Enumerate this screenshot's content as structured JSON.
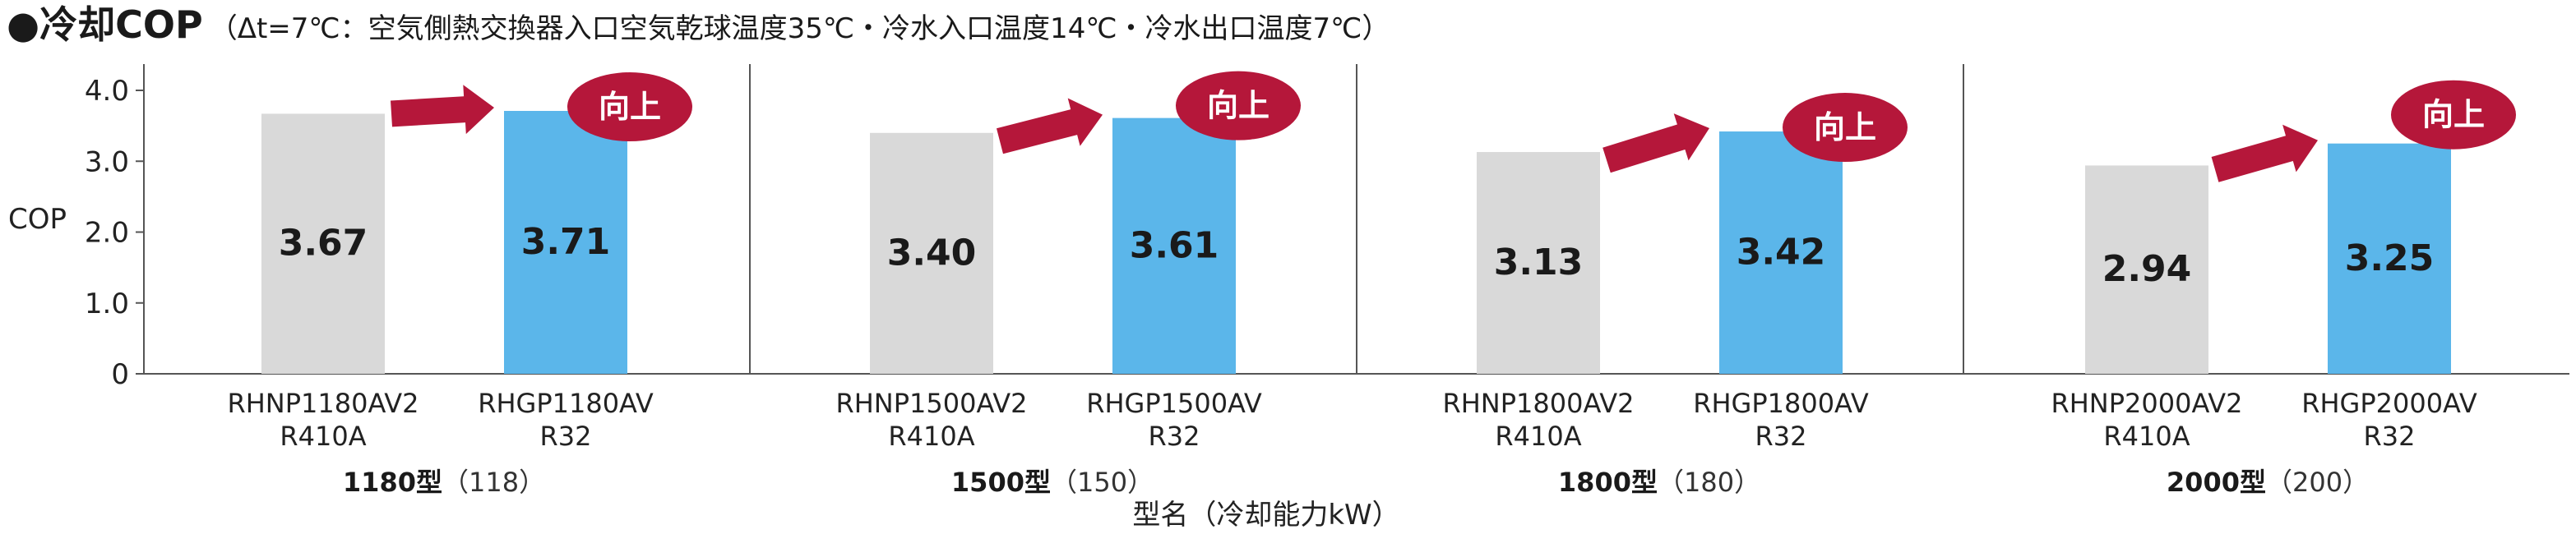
{
  "chart_data": {
    "type": "bar",
    "title": "●冷却COP",
    "subtitle": "（Δt=7℃：空気側熱交換器入口空気乾球温度35℃・冷水入口温度14℃・冷水出口温度7℃）",
    "ylabel": "COP",
    "xlabel": "型名（冷却能力kW）",
    "ylim": [
      0,
      4.0
    ],
    "yticks": [
      "0",
      "1.0",
      "2.0",
      "3.0",
      "4.0"
    ],
    "ytick_values": [
      0,
      1,
      2,
      3,
      4
    ],
    "badge_text": "向上",
    "colors": {
      "old": "#d9d9d9",
      "new": "#5bb6ea",
      "accent": "#b5173a",
      "axis": "#555555"
    },
    "groups": [
      {
        "name": "1180型",
        "capacity": "（118）",
        "bars": [
          {
            "model": "RHNP1180AV2",
            "refrigerant": "R410A",
            "value": 3.67,
            "label": "3.67"
          },
          {
            "model": "RHGP1180AV",
            "refrigerant": "R32",
            "value": 3.71,
            "label": "3.71"
          }
        ]
      },
      {
        "name": "1500型",
        "capacity": "（150）",
        "bars": [
          {
            "model": "RHNP1500AV2",
            "refrigerant": "R410A",
            "value": 3.4,
            "label": "3.40"
          },
          {
            "model": "RHGP1500AV",
            "refrigerant": "R32",
            "value": 3.61,
            "label": "3.61"
          }
        ]
      },
      {
        "name": "1800型",
        "capacity": "（180）",
        "bars": [
          {
            "model": "RHNP1800AV2",
            "refrigerant": "R410A",
            "value": 3.13,
            "label": "3.13"
          },
          {
            "model": "RHGP1800AV",
            "refrigerant": "R32",
            "value": 3.42,
            "label": "3.42"
          }
        ]
      },
      {
        "name": "2000型",
        "capacity": "（200）",
        "bars": [
          {
            "model": "RHNP2000AV2",
            "refrigerant": "R410A",
            "value": 2.94,
            "label": "2.94"
          },
          {
            "model": "RHGP2000AV",
            "refrigerant": "R32",
            "value": 3.25,
            "label": "3.25"
          }
        ]
      }
    ]
  }
}
